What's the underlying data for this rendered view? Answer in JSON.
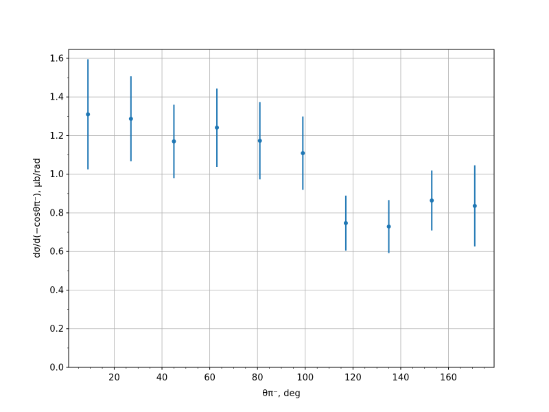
{
  "chart_data": {
    "type": "scatter",
    "title": "",
    "xlabel": "θπ⁻, deg",
    "ylabel": "dσ/d(−cosθπ⁻), μb/rad",
    "xlim": [
      0.9,
      179.1
    ],
    "ylim": [
      0,
      1.646
    ],
    "grid": true,
    "x_ticks": [
      20,
      40,
      60,
      80,
      100,
      120,
      140,
      160
    ],
    "x_tick_labels": [
      "20",
      "40",
      "60",
      "80",
      "100",
      "120",
      "140",
      "160"
    ],
    "y_ticks": [
      0,
      0.2,
      0.4,
      0.6,
      0.8,
      1.0,
      1.2,
      1.4,
      1.6
    ],
    "y_tick_labels": [
      "0.0",
      "0.2",
      "0.4",
      "0.6",
      "0.8",
      "1.0",
      "1.2",
      "1.4",
      "1.6"
    ],
    "color": "#1f77b4",
    "series": [
      {
        "x": [
          9,
          27,
          45,
          63,
          81,
          99,
          117,
          135,
          153,
          171
        ],
        "y": [
          1.31,
          1.287,
          1.17,
          1.241,
          1.173,
          1.109,
          0.747,
          0.729,
          0.864,
          0.836
        ],
        "yerr": [
          0.285,
          0.22,
          0.19,
          0.203,
          0.2,
          0.19,
          0.142,
          0.137,
          0.155,
          0.21
        ]
      }
    ]
  }
}
